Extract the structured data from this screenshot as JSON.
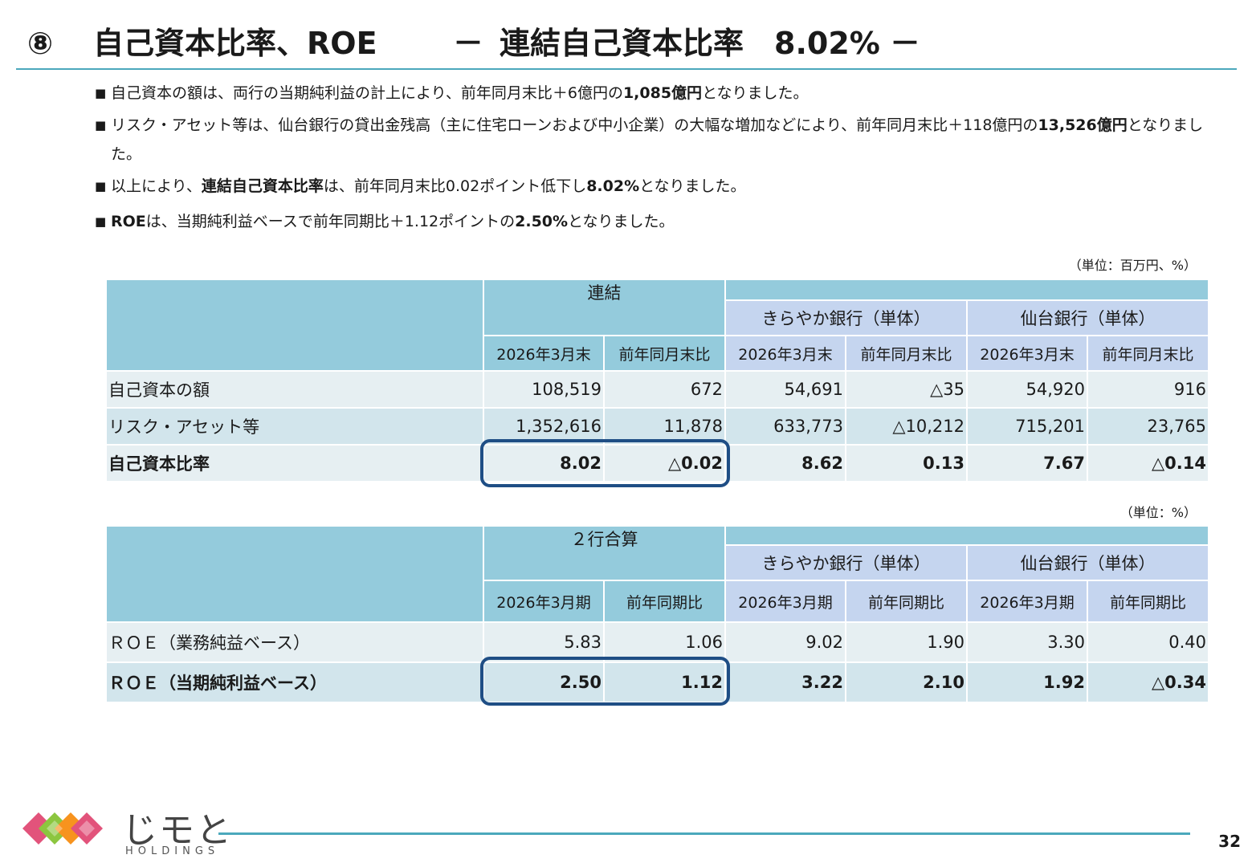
{
  "title": {
    "number": "⑧",
    "main": "自己資本比率、ROE",
    "dash_left": "－",
    "subtitle": "連結自己資本比率　8.02%",
    "dash_right": "－"
  },
  "bullets": [
    {
      "marker": "■",
      "pre": "自己資本の額は、両行の当期純利益の計上により、前年同月末比＋6億円の",
      "bold": "1,085億円",
      "post": "となりました。"
    },
    {
      "marker": "■",
      "pre": "リスク・アセット等は、仙台銀行の貸出金残高（主に住宅ローンおよび中小企業）の大幅な増加などにより、前年同月末比＋118億円の",
      "bold": "13,526億円",
      "post": "となりました。"
    },
    {
      "marker": "■",
      "pre": "以上により、",
      "bold": "連結自己資本比率",
      "post": "は、前年同月末比0.02ポイント低下し",
      "bold2": "8.02%",
      "post2": "となりました。"
    },
    {
      "marker": "■",
      "pre": "",
      "bold": "ROE",
      "post": "は、当期純利益ベースで前年同期比＋1.12ポイントの",
      "bold2": "2.50%",
      "post2": "となりました。"
    }
  ],
  "table1": {
    "unit": "（単位：百万円、%）",
    "group_consolidated": "連結",
    "group_kirayaka": "きらやか銀行（単体）",
    "group_sendai": "仙台銀行（単体）",
    "columns": [
      "2026年3月末",
      "前年同月末比",
      "2026年3月末",
      "前年同月末比",
      "2026年3月末",
      "前年同月末比"
    ],
    "rows": [
      {
        "label": "自己資本の額",
        "values": [
          "108,519",
          "672",
          "54,691",
          "△35",
          "54,920",
          "916"
        ],
        "bold": false
      },
      {
        "label": "リスク・アセット等",
        "values": [
          "1,352,616",
          "11,878",
          "633,773",
          "△10,212",
          "715,201",
          "23,765"
        ],
        "bold": false
      },
      {
        "label": "自己資本比率",
        "values": [
          "8.02",
          "△0.02",
          "8.62",
          "0.13",
          "7.67",
          "△0.14"
        ],
        "bold": true
      }
    ]
  },
  "table2": {
    "unit": "（単位：%）",
    "group_combined": "２行合算",
    "group_kirayaka": "きらやか銀行（単体）",
    "group_sendai": "仙台銀行（単体）",
    "columns": [
      "2026年3月期",
      "前年同期比",
      "2026年3月期",
      "前年同期比",
      "2026年3月期",
      "前年同期比"
    ],
    "rows": [
      {
        "label": "ＲＯＥ（業務純益ベース）",
        "values": [
          "5.83",
          "1.06",
          "9.02",
          "1.90",
          "3.30",
          "0.40"
        ],
        "bold": false
      },
      {
        "label": "ＲＯＥ（当期純利益ベース）",
        "values": [
          "2.50",
          "1.12",
          "3.22",
          "2.10",
          "1.92",
          "△0.34"
        ],
        "bold": true
      }
    ]
  },
  "footer": {
    "logo_text": "じモと",
    "logo_sub": "HOLDINGS",
    "page_number": "32"
  },
  "colors": {
    "header_teal": "#94cbdc",
    "header_blue": "#c5d5ef",
    "row_light": "#e6eff2",
    "row_dark": "#d2e5ec",
    "highlight_frame": "#1f4e85",
    "rule": "#4ba8bc"
  }
}
